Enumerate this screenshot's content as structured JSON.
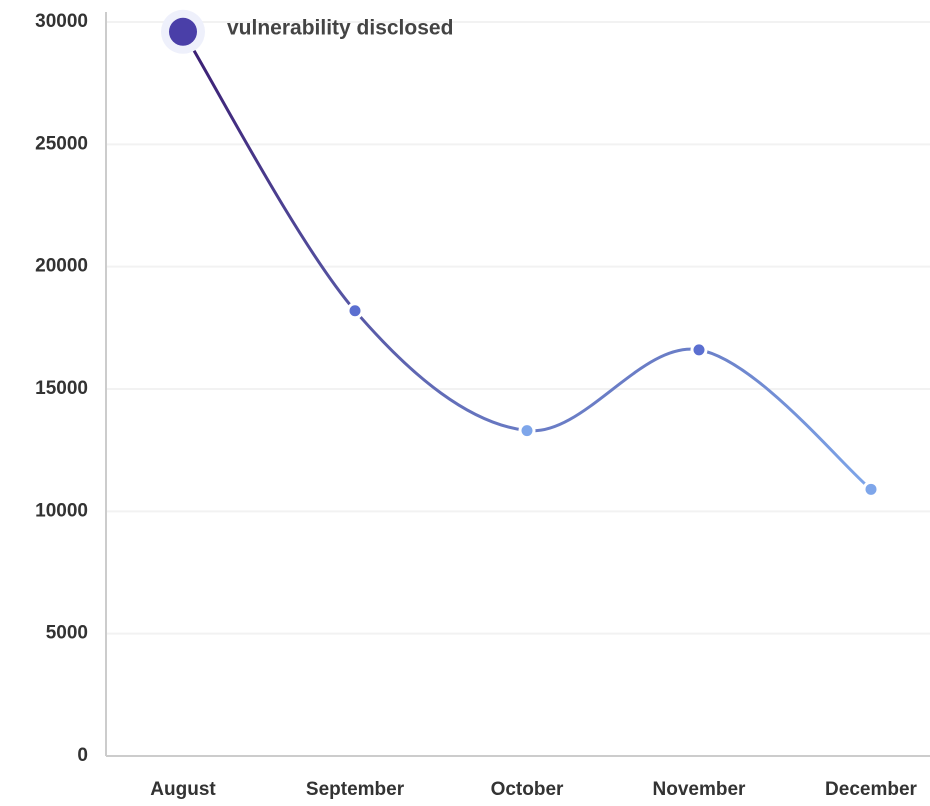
{
  "chart_data": {
    "type": "line",
    "annotation": "vulnerability disclosed",
    "categories": [
      "August",
      "September",
      "October",
      "November",
      "December"
    ],
    "series": [
      {
        "name": "vulnerability disclosed",
        "color": "#5b6fd0",
        "values": [
          29600,
          18200,
          13300,
          16600,
          10900
        ]
      }
    ],
    "line_colors": [
      "#3a1c71",
      "#7ea6ea"
    ],
    "ylim": [
      0,
      30000
    ],
    "yticks": [
      0,
      5000,
      10000,
      15000,
      20000,
      25000,
      30000
    ],
    "grid": true
  }
}
